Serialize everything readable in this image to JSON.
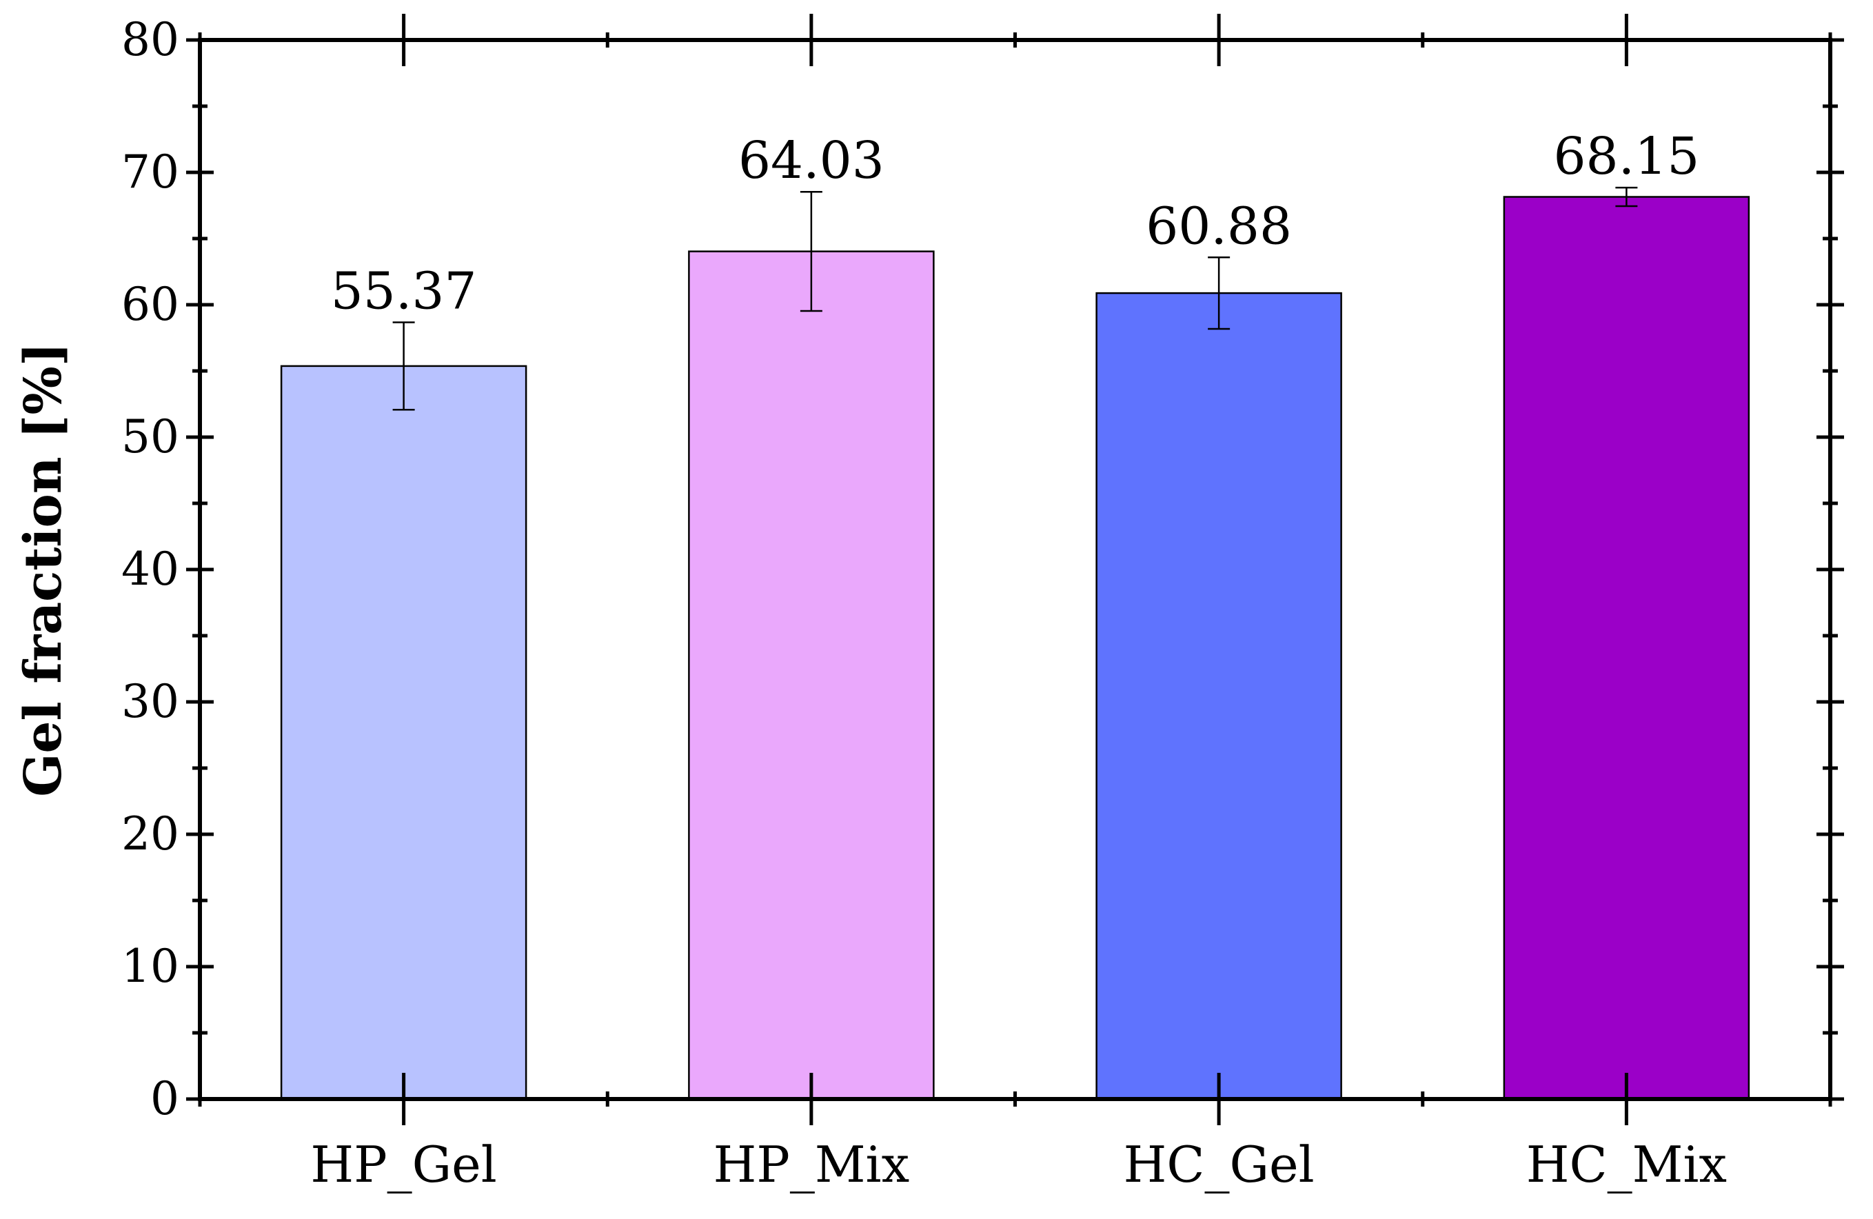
{
  "chart_data": {
    "type": "bar",
    "title": "",
    "xlabel": "",
    "ylabel": "Gel fraction [%]",
    "ylim": [
      0,
      80
    ],
    "yticks": [
      0,
      10,
      20,
      30,
      40,
      50,
      60,
      70,
      80
    ],
    "ytick_labels": [
      "0",
      "10",
      "20",
      "30",
      "40",
      "50",
      "60",
      "70",
      "80"
    ],
    "grid": false,
    "categories": [
      "HP_Gel",
      "HP_Mix",
      "HC_Gel",
      "HC_Mix"
    ],
    "values": [
      55.37,
      64.03,
      60.88,
      68.15
    ],
    "value_labels": [
      "55.37",
      "64.03",
      "60.88",
      "68.15"
    ],
    "errors": [
      3.3,
      4.5,
      2.7,
      0.7
    ],
    "colors": [
      "#b8c2ff",
      "#eaa8fc",
      "#5f73fe",
      "#9b00c8"
    ]
  }
}
